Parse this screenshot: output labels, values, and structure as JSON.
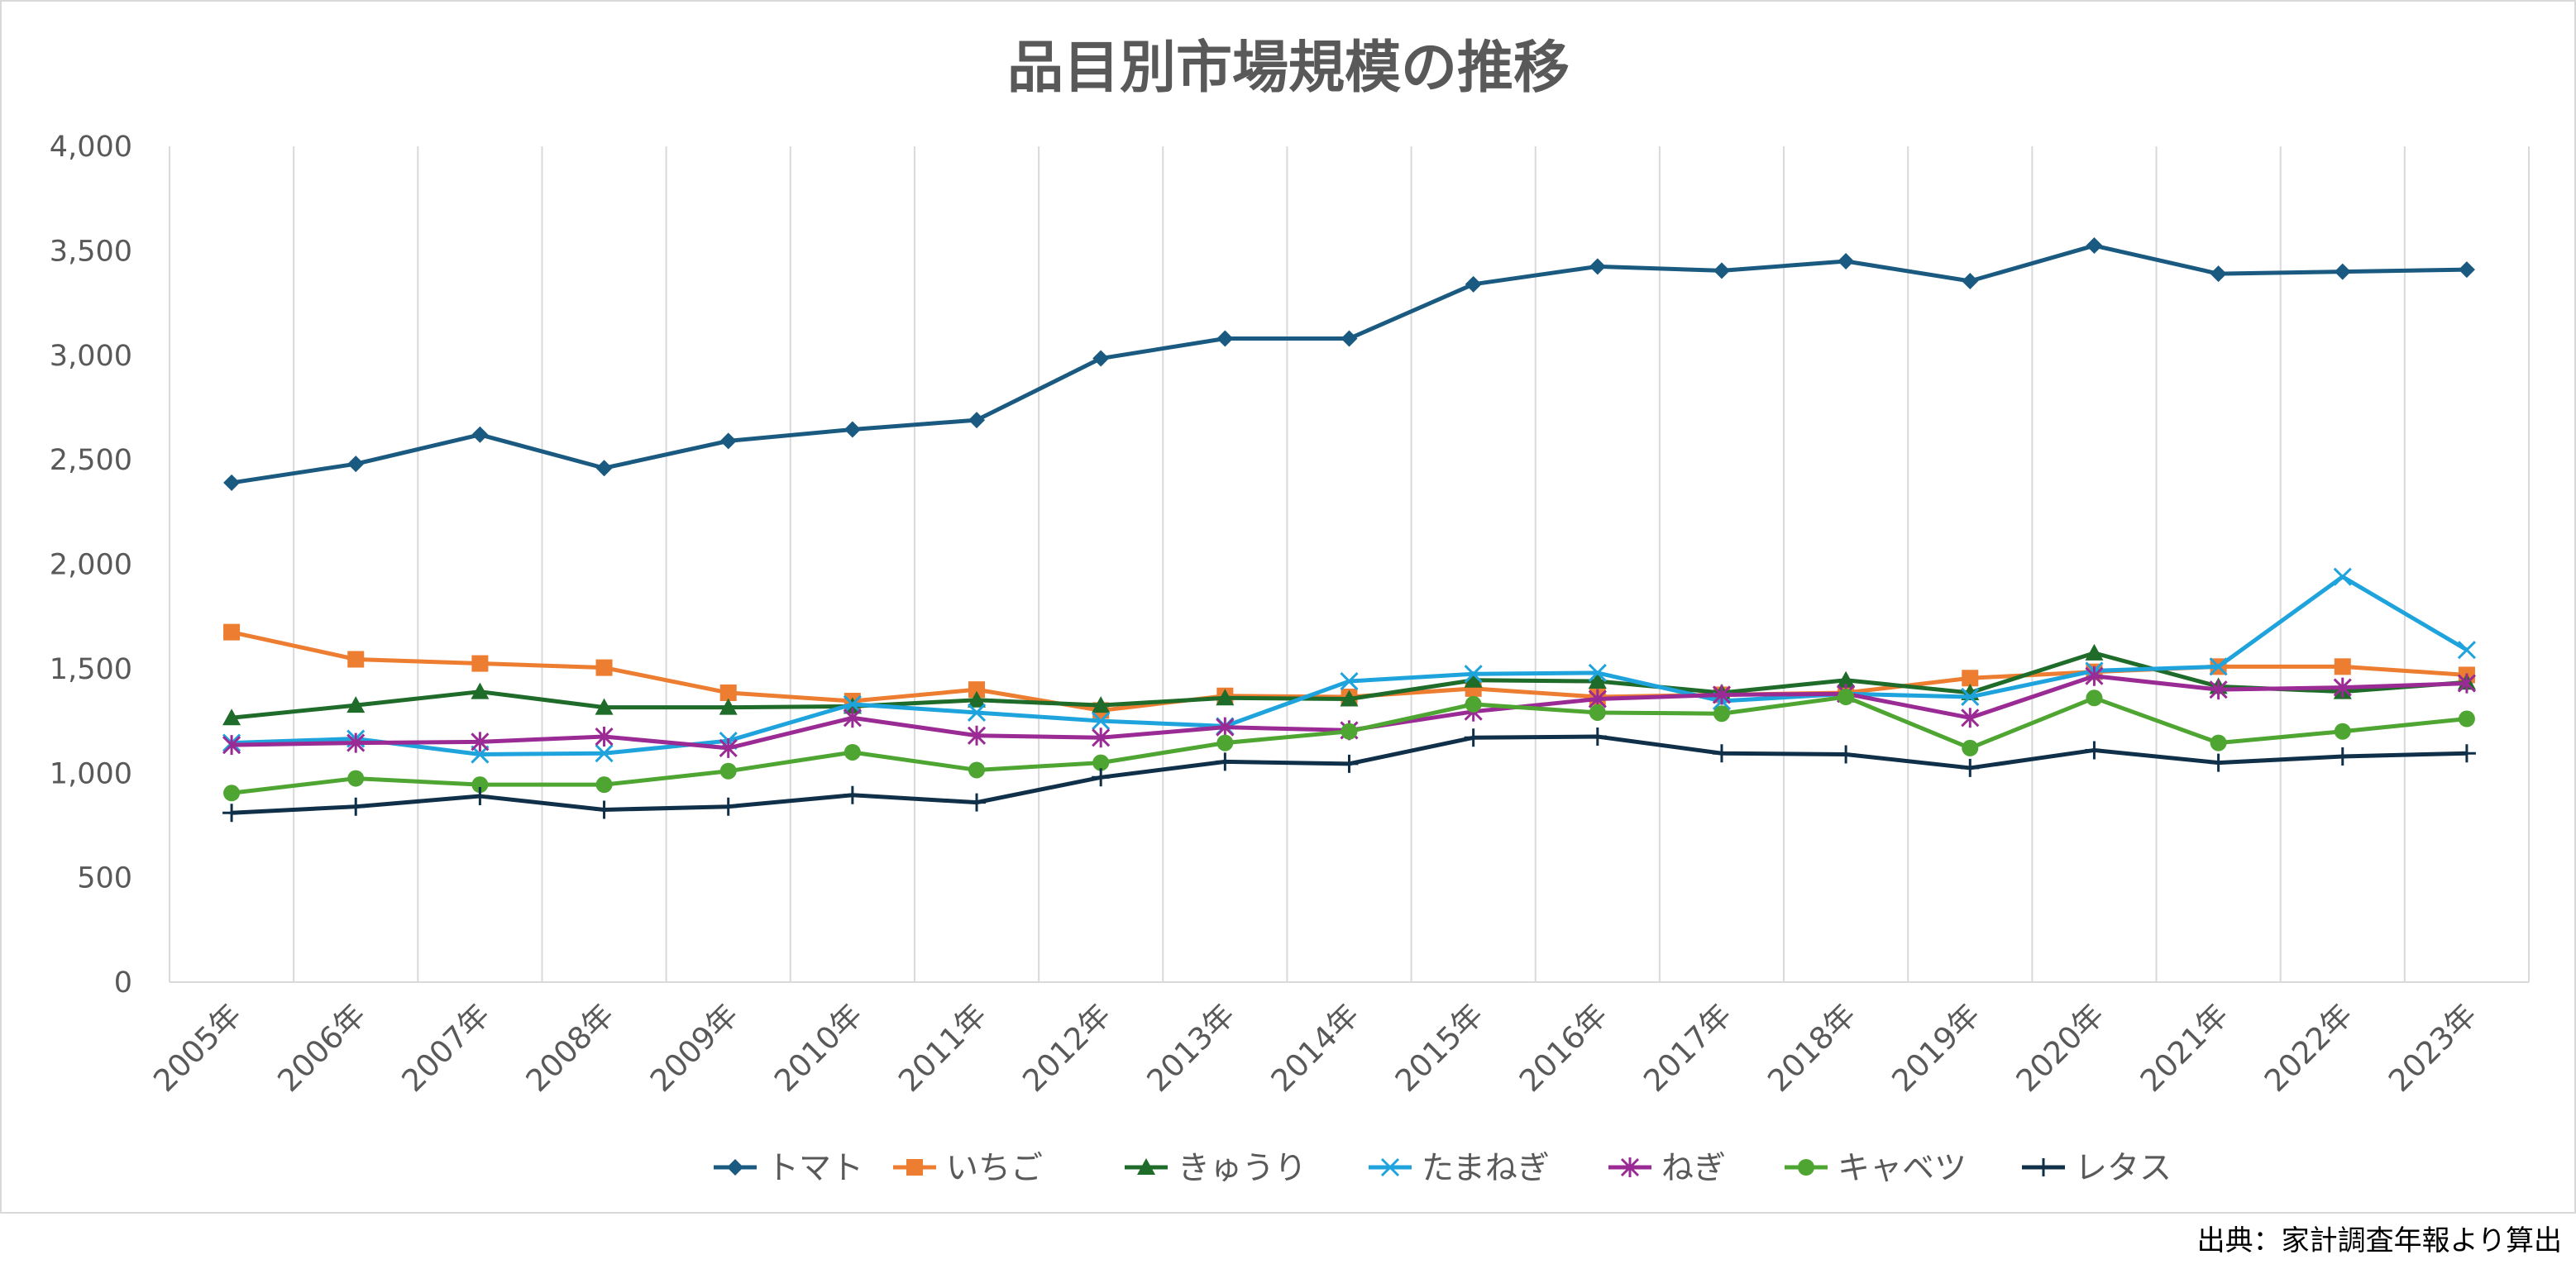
{
  "chart_data": {
    "type": "line",
    "title": "品目別市場規模の推移",
    "source_note": "出典：家計調査年報より算出",
    "xlabel": "",
    "ylabel": "",
    "ylim": [
      0,
      4000
    ],
    "y_ticks": [
      0,
      500,
      1000,
      1500,
      2000,
      2500,
      3000,
      3500,
      4000
    ],
    "y_tick_labels": [
      "0",
      "500",
      "1,000",
      "1,500",
      "2,000",
      "2,500",
      "3,000",
      "3,500",
      "4,000"
    ],
    "categories": [
      "2005年",
      "2006年",
      "2007年",
      "2008年",
      "2009年",
      "2010年",
      "2011年",
      "2012年",
      "2013年",
      "2014年",
      "2015年",
      "2016年",
      "2017年",
      "2018年",
      "2019年",
      "2020年",
      "2021年",
      "2022年",
      "2023年"
    ],
    "grid": "vertical",
    "legend_position": "bottom",
    "series": [
      {
        "name": "トマト",
        "color": "#1a5a80",
        "marker": "diamond",
        "values": [
          2390,
          2480,
          2620,
          2460,
          2590,
          2645,
          2690,
          2985,
          3080,
          3080,
          3340,
          3425,
          3405,
          3450,
          3355,
          3525,
          3390,
          3400,
          3410
        ]
      },
      {
        "name": "いちご",
        "color": "#ed7d31",
        "marker": "square",
        "values": [
          1675,
          1545,
          1525,
          1505,
          1385,
          1345,
          1400,
          1300,
          1370,
          1365,
          1405,
          1365,
          1375,
          1385,
          1455,
          1485,
          1510,
          1510,
          1470
        ]
      },
      {
        "name": "きゅうり",
        "color": "#1f6b2a",
        "marker": "triangle",
        "values": [
          1265,
          1325,
          1390,
          1315,
          1315,
          1320,
          1350,
          1325,
          1360,
          1355,
          1445,
          1440,
          1385,
          1445,
          1385,
          1575,
          1415,
          1390,
          1435
        ]
      },
      {
        "name": "たまねぎ",
        "color": "#1fa3dc",
        "marker": "x",
        "values": [
          1145,
          1165,
          1090,
          1095,
          1155,
          1330,
          1290,
          1250,
          1225,
          1440,
          1475,
          1480,
          1345,
          1380,
          1365,
          1490,
          1510,
          1940,
          1590
        ]
      },
      {
        "name": "ねぎ",
        "color": "#9b2b94",
        "marker": "star",
        "values": [
          1135,
          1145,
          1150,
          1175,
          1120,
          1265,
          1180,
          1170,
          1220,
          1205,
          1295,
          1355,
          1375,
          1380,
          1265,
          1465,
          1400,
          1410,
          1430
        ]
      },
      {
        "name": "キャベツ",
        "color": "#4ea532",
        "marker": "circle",
        "values": [
          905,
          975,
          945,
          945,
          1010,
          1100,
          1015,
          1050,
          1145,
          1200,
          1330,
          1290,
          1285,
          1365,
          1120,
          1360,
          1145,
          1200,
          1260
        ]
      },
      {
        "name": "レタス",
        "color": "#10304a",
        "marker": "plus",
        "values": [
          810,
          840,
          890,
          825,
          840,
          895,
          860,
          980,
          1055,
          1045,
          1170,
          1175,
          1095,
          1090,
          1025,
          1110,
          1050,
          1080,
          1095
        ]
      }
    ]
  }
}
